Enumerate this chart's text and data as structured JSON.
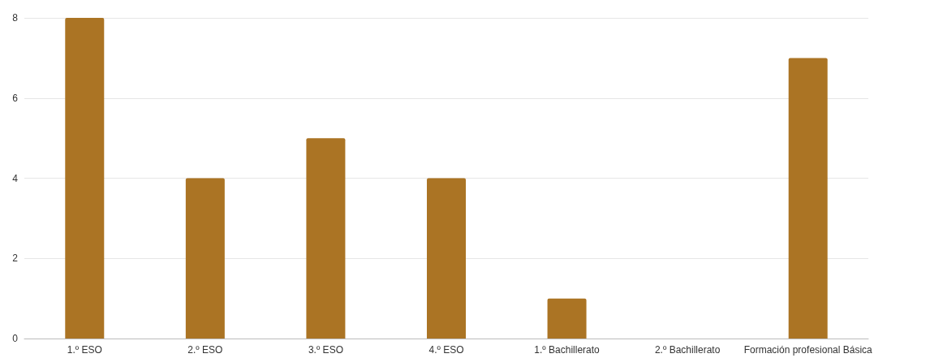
{
  "chart_data": {
    "type": "bar",
    "categories": [
      "1.º ESO",
      "2.º ESO",
      "3.º ESO",
      "4.º ESO",
      "1.º Bachillerato",
      "2.º Bachillerato",
      "Formación profesional Básica"
    ],
    "values": [
      8,
      4,
      5,
      4,
      1,
      0,
      7
    ],
    "color": "#ab7424",
    "ylim": [
      0,
      8
    ],
    "yticks": [
      0,
      2,
      4,
      6,
      8
    ],
    "grid": "y"
  }
}
